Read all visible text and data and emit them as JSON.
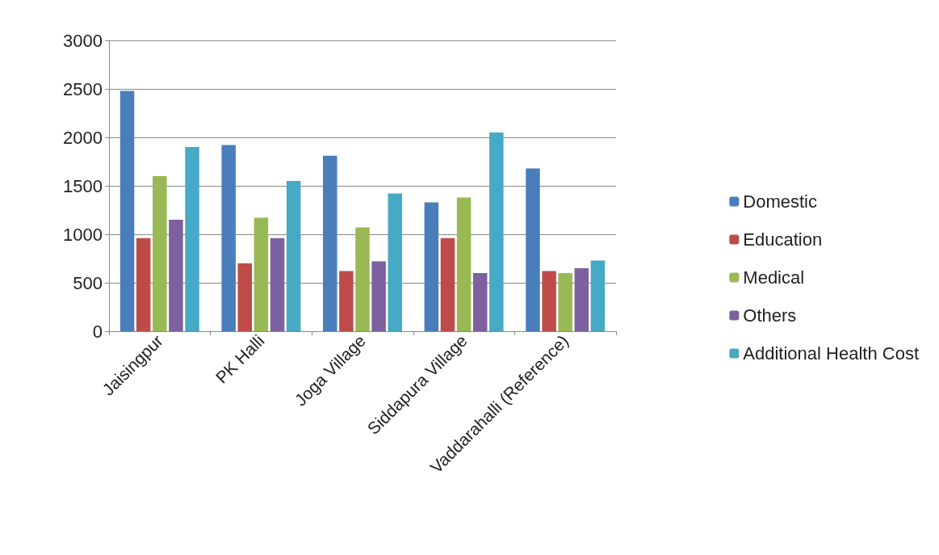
{
  "chart_data": {
    "type": "bar",
    "categories": [
      "Jaisingpur",
      "PK Halli",
      "Joga Village",
      "Siddapura Village",
      "Vaddarahalli (Reference)"
    ],
    "series": [
      {
        "name": "Domestic",
        "color": "#4a7ebb",
        "values": [
          2480,
          1920,
          1810,
          1330,
          1680
        ]
      },
      {
        "name": "Education",
        "color": "#be4b48",
        "values": [
          960,
          700,
          620,
          960,
          620
        ]
      },
      {
        "name": "Medical",
        "color": "#98b954",
        "values": [
          1600,
          1170,
          1070,
          1380,
          600
        ]
      },
      {
        "name": "Others",
        "color": "#7d60a0",
        "values": [
          1150,
          960,
          720,
          600,
          650
        ]
      },
      {
        "name": "Additional Health Cost",
        "color": "#46aac5",
        "values": [
          1900,
          1550,
          1420,
          2050,
          730
        ]
      }
    ],
    "ylim": [
      0,
      3000
    ],
    "yticks": [
      0,
      500,
      1000,
      1500,
      2000,
      2500,
      3000
    ],
    "grid": "y",
    "legend": "right"
  }
}
